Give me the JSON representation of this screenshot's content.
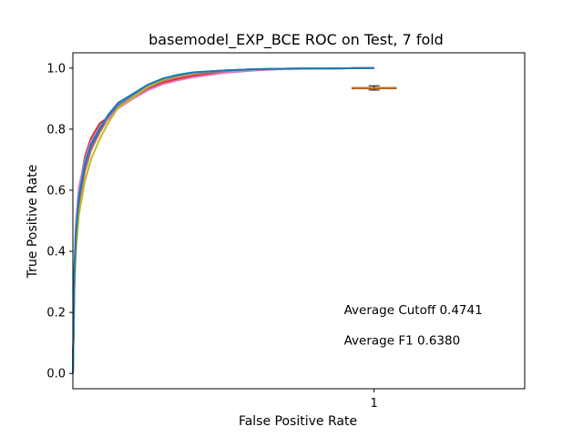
{
  "chart_data": {
    "type": "line",
    "title": "basemodel_EXP_BCE ROC on Test, 7 fold",
    "xlabel": "False Positive Rate",
    "ylabel": "True Positive Rate",
    "xlim": [
      0,
      1.5
    ],
    "ylim": [
      -0.05,
      1.05
    ],
    "xticks": [
      {
        "value": 1,
        "label": "1"
      }
    ],
    "yticks": [
      {
        "value": 0.0,
        "label": "0.0"
      },
      {
        "value": 0.2,
        "label": "0.2"
      },
      {
        "value": 0.4,
        "label": "0.4"
      },
      {
        "value": 0.6,
        "label": "0.6"
      },
      {
        "value": 0.8,
        "label": "0.8"
      },
      {
        "value": 1.0,
        "label": "1.0"
      }
    ],
    "grid": false,
    "legend": "none",
    "series": [
      {
        "color": "#1f77b4",
        "x": [
          0,
          0.005,
          0.01,
          0.02,
          0.04,
          0.06,
          0.09,
          0.12,
          0.15,
          0.2,
          0.25,
          0.3,
          0.35,
          0.4,
          0.5,
          0.6,
          0.7,
          0.85,
          1.0
        ],
        "y": [
          0,
          0.32,
          0.45,
          0.57,
          0.68,
          0.74,
          0.8,
          0.845,
          0.88,
          0.91,
          0.945,
          0.965,
          0.978,
          0.985,
          0.992,
          0.996,
          0.998,
          0.999,
          1.0
        ]
      },
      {
        "color": "#ff7f0e",
        "x": [
          0,
          0.005,
          0.01,
          0.02,
          0.04,
          0.06,
          0.09,
          0.12,
          0.15,
          0.2,
          0.25,
          0.3,
          0.35,
          0.4,
          0.5,
          0.6,
          0.7,
          0.85,
          1.0
        ],
        "y": [
          0,
          0.3,
          0.43,
          0.55,
          0.66,
          0.73,
          0.79,
          0.84,
          0.875,
          0.905,
          0.935,
          0.958,
          0.972,
          0.982,
          0.99,
          0.995,
          0.998,
          0.999,
          1.0
        ]
      },
      {
        "color": "#2ca02c",
        "x": [
          0,
          0.005,
          0.01,
          0.02,
          0.04,
          0.06,
          0.09,
          0.12,
          0.15,
          0.2,
          0.25,
          0.3,
          0.35,
          0.4,
          0.5,
          0.6,
          0.7,
          0.85,
          1.0
        ],
        "y": [
          0,
          0.33,
          0.46,
          0.58,
          0.69,
          0.75,
          0.805,
          0.85,
          0.882,
          0.912,
          0.942,
          0.963,
          0.976,
          0.984,
          0.991,
          0.996,
          0.998,
          0.999,
          1.0
        ]
      },
      {
        "color": "#d62728",
        "x": [
          0,
          0.005,
          0.01,
          0.02,
          0.04,
          0.06,
          0.09,
          0.12,
          0.15,
          0.2,
          0.25,
          0.3,
          0.35,
          0.4,
          0.5,
          0.6,
          0.7,
          0.85,
          1.0
        ],
        "y": [
          0,
          0.34,
          0.48,
          0.6,
          0.71,
          0.77,
          0.82,
          0.84,
          0.87,
          0.9,
          0.93,
          0.952,
          0.965,
          0.975,
          0.986,
          0.993,
          0.997,
          0.999,
          1.0
        ]
      },
      {
        "color": "#9467bd",
        "x": [
          0,
          0.005,
          0.01,
          0.02,
          0.04,
          0.06,
          0.09,
          0.12,
          0.15,
          0.2,
          0.25,
          0.3,
          0.35,
          0.4,
          0.5,
          0.6,
          0.7,
          0.85,
          1.0
        ],
        "y": [
          0,
          0.31,
          0.44,
          0.56,
          0.67,
          0.735,
          0.795,
          0.842,
          0.878,
          0.908,
          0.938,
          0.96,
          0.974,
          0.983,
          0.99,
          0.995,
          0.998,
          0.999,
          1.0
        ]
      },
      {
        "color": "#8c564b",
        "x": [
          0,
          0.005,
          0.01,
          0.02,
          0.04,
          0.06,
          0.09,
          0.12,
          0.15,
          0.2,
          0.25,
          0.3,
          0.35,
          0.4,
          0.5,
          0.6,
          0.7,
          0.85,
          1.0
        ],
        "y": [
          0,
          0.32,
          0.45,
          0.575,
          0.685,
          0.745,
          0.8,
          0.848,
          0.884,
          0.914,
          0.944,
          0.964,
          0.977,
          0.985,
          0.992,
          0.996,
          0.998,
          0.999,
          1.0
        ]
      },
      {
        "color": "#e377c2",
        "x": [
          0,
          0.005,
          0.01,
          0.02,
          0.04,
          0.06,
          0.09,
          0.12,
          0.15,
          0.2,
          0.25,
          0.3,
          0.35,
          0.4,
          0.5,
          0.6,
          0.7,
          0.85,
          1.0
        ],
        "y": [
          0,
          0.35,
          0.49,
          0.61,
          0.7,
          0.76,
          0.81,
          0.835,
          0.868,
          0.9,
          0.928,
          0.948,
          0.96,
          0.97,
          0.984,
          0.992,
          0.997,
          0.999,
          1.0
        ]
      },
      {
        "color": "#bcbd22",
        "x": [
          0,
          0.005,
          0.01,
          0.02,
          0.04,
          0.06,
          0.09,
          0.12,
          0.15,
          0.2,
          0.25,
          0.3,
          0.35,
          0.4,
          0.5,
          0.6,
          0.7,
          0.85,
          1.0
        ],
        "y": [
          0,
          0.28,
          0.4,
          0.52,
          0.63,
          0.7,
          0.77,
          0.825,
          0.87,
          0.905,
          0.94,
          0.962,
          0.976,
          0.984,
          0.991,
          0.996,
          0.998,
          0.999,
          1.0
        ]
      },
      {
        "color": "#17becf",
        "x": [
          0,
          0.005,
          0.01,
          0.02,
          0.04,
          0.06,
          0.09,
          0.12,
          0.15,
          0.2,
          0.25,
          0.3,
          0.35,
          0.4,
          0.5,
          0.6,
          0.7,
          0.85,
          1.0
        ],
        "y": [
          0,
          0.33,
          0.46,
          0.58,
          0.69,
          0.75,
          0.805,
          0.85,
          0.885,
          0.915,
          0.946,
          0.966,
          0.978,
          0.986,
          0.992,
          0.996,
          0.998,
          0.999,
          1.0
        ]
      },
      {
        "color": "#1f77b4",
        "x": [
          0,
          0.005,
          0.01,
          0.02,
          0.04,
          0.06,
          0.09,
          0.12,
          0.15,
          0.2,
          0.25,
          0.3,
          0.35,
          0.4,
          0.5,
          0.6,
          0.7,
          0.85,
          1.0
        ],
        "y": [
          0,
          0.32,
          0.455,
          0.575,
          0.685,
          0.748,
          0.803,
          0.85,
          0.886,
          0.916,
          0.946,
          0.966,
          0.978,
          0.986,
          0.992,
          0.996,
          0.998,
          0.999,
          1.0
        ]
      }
    ],
    "boxplot": {
      "position": 1,
      "q1": 0.9325,
      "median": 0.934,
      "q3": 0.936,
      "whisker_low": 0.928,
      "whisker_high": 0.942,
      "box_color": "#000000",
      "median_color": "#ff7f0e"
    },
    "annotations": [
      {
        "text": "Average Cutoff 0.4741",
        "x": 0.9,
        "y": 0.21
      },
      {
        "text": "Average F1 0.6380",
        "x": 0.9,
        "y": 0.11
      }
    ]
  }
}
